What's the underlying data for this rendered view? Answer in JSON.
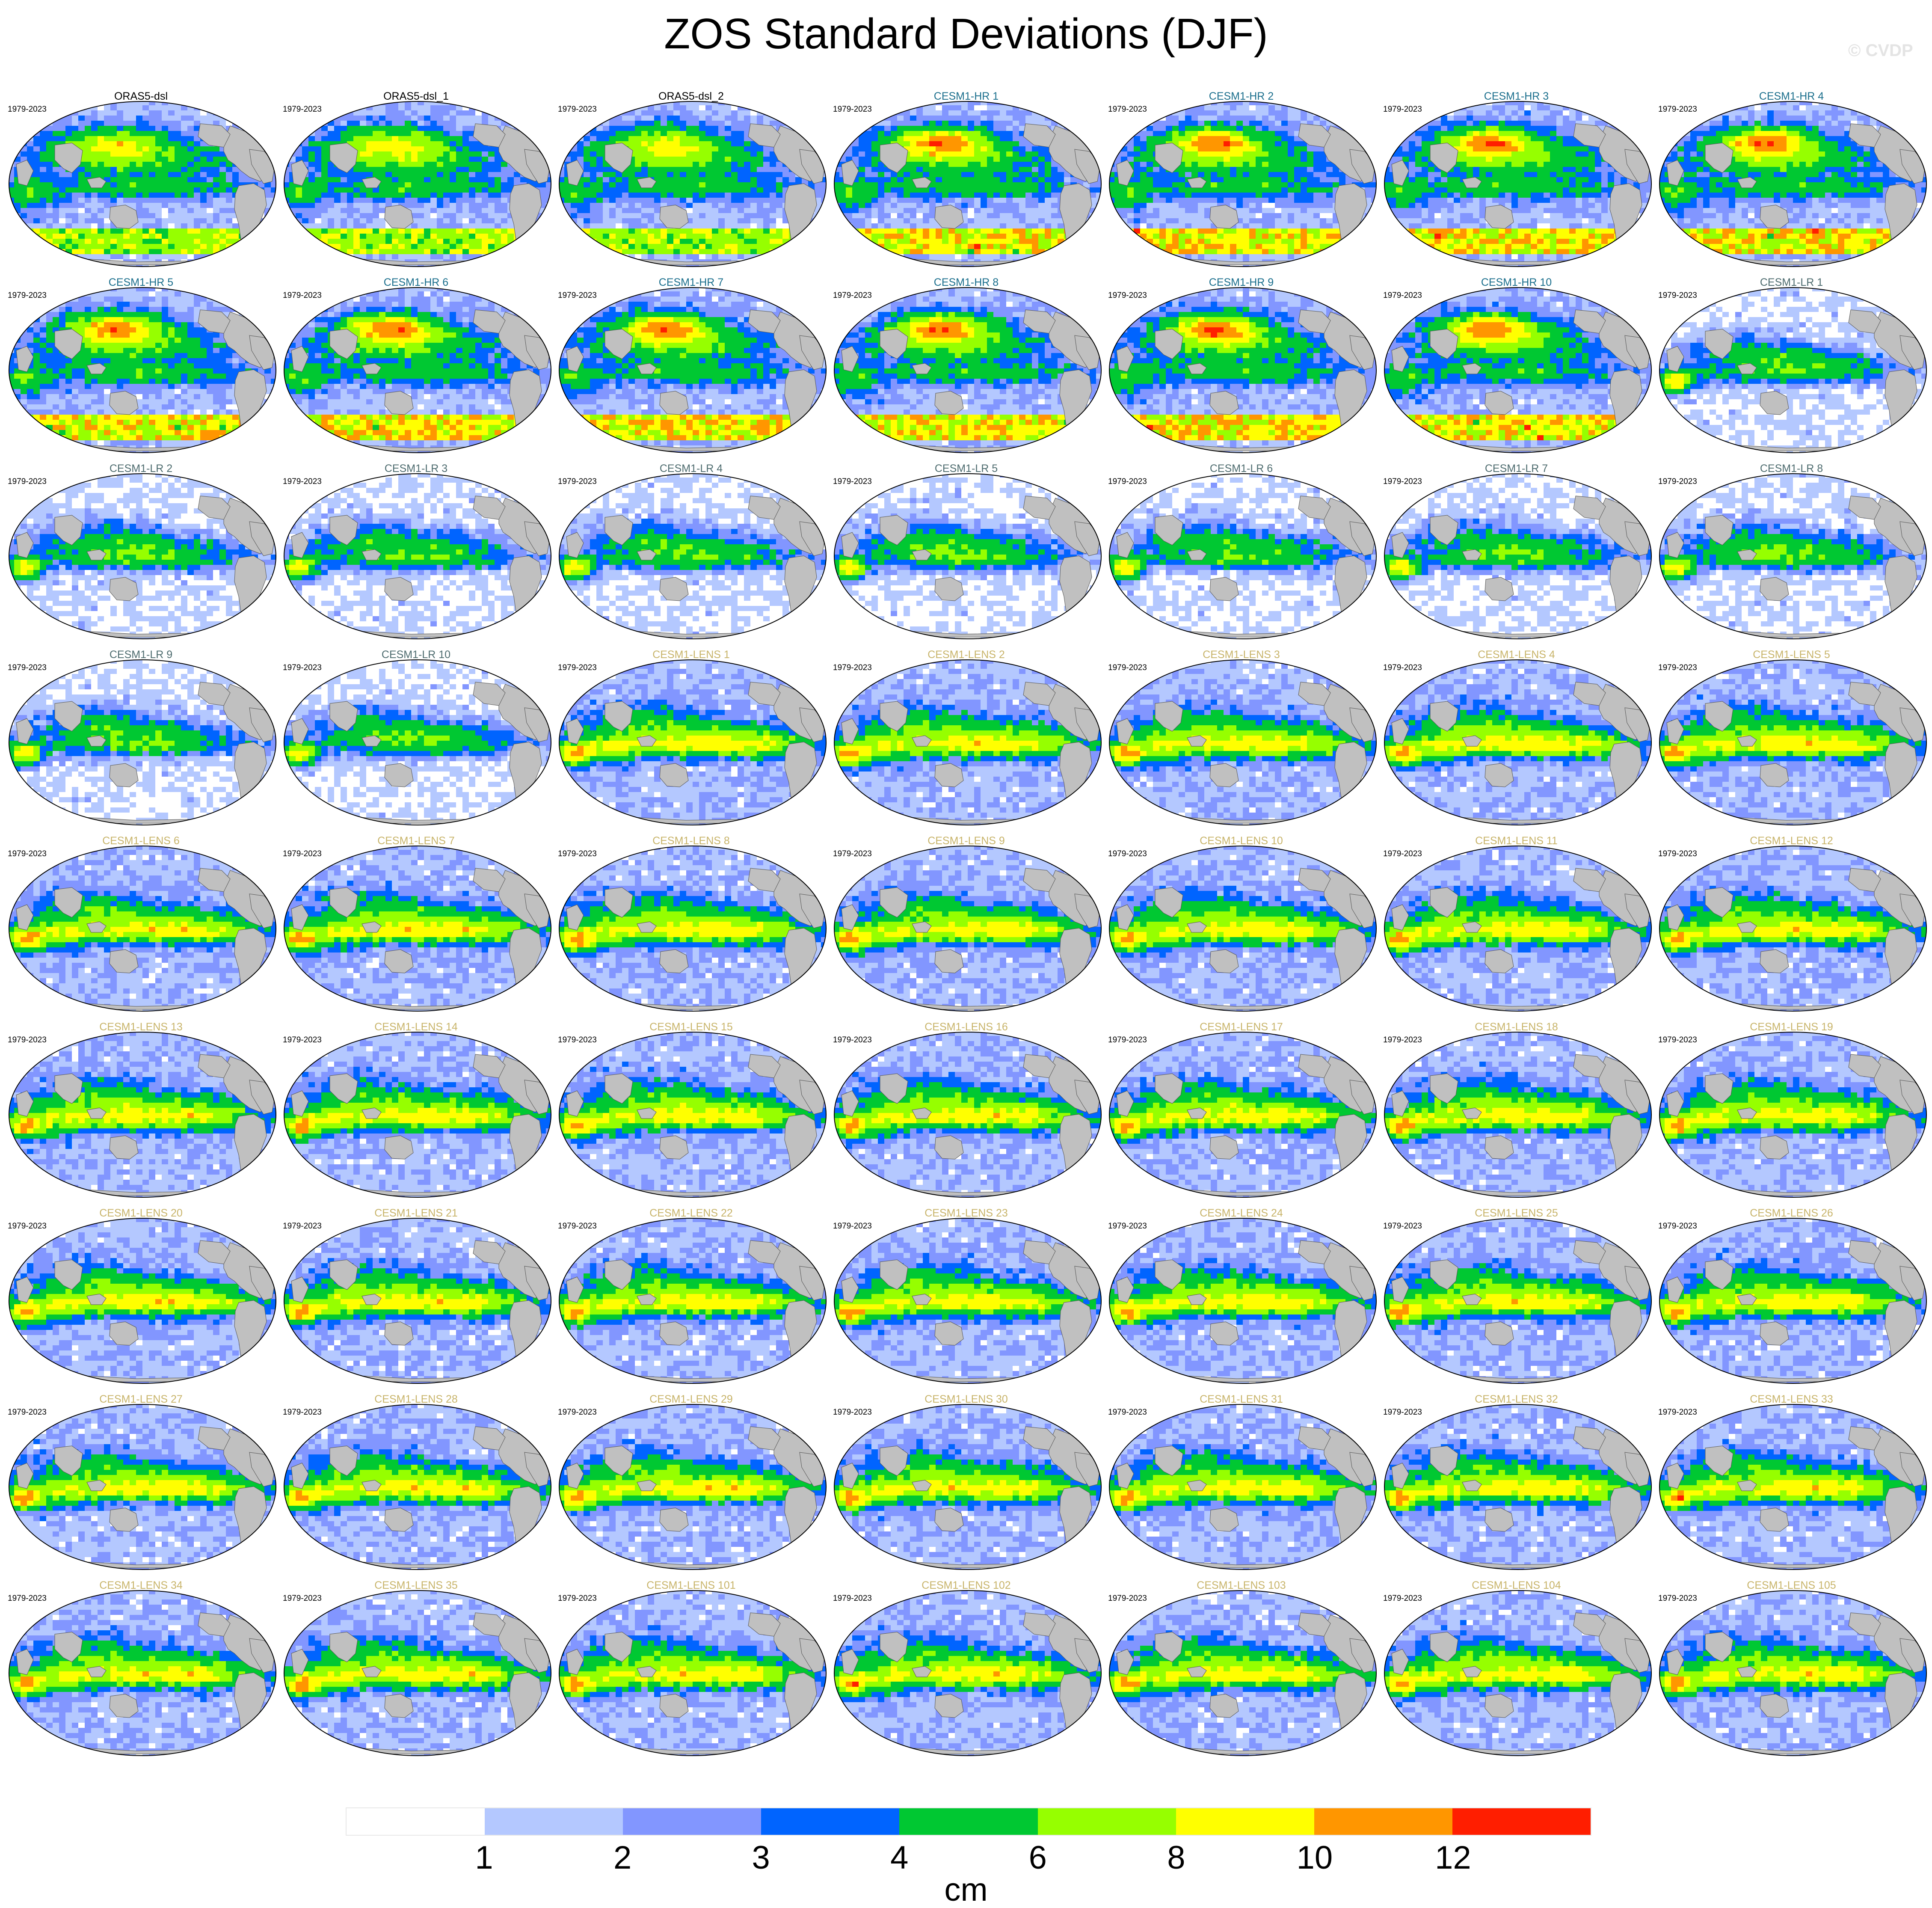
{
  "title": "ZOS Standard Deviations (DJF)",
  "watermark": "© CVDP",
  "period": "1979-2023",
  "panels": [
    {
      "name": "ORAS5-dsl",
      "group": "obs",
      "pattern": "obs"
    },
    {
      "name": "ORAS5-dsl_1",
      "group": "obs",
      "pattern": "obs"
    },
    {
      "name": "ORAS5-dsl_2",
      "group": "obs",
      "pattern": "obs"
    },
    {
      "name": "CESM1-HR 1",
      "group": "hr",
      "pattern": "hr"
    },
    {
      "name": "CESM1-HR 2",
      "group": "hr",
      "pattern": "hr"
    },
    {
      "name": "CESM1-HR 3",
      "group": "hr",
      "pattern": "hr"
    },
    {
      "name": "CESM1-HR 4",
      "group": "hr",
      "pattern": "hr"
    },
    {
      "name": "CESM1-HR 5",
      "group": "hr",
      "pattern": "hr"
    },
    {
      "name": "CESM1-HR 6",
      "group": "hr",
      "pattern": "hr"
    },
    {
      "name": "CESM1-HR 7",
      "group": "hr",
      "pattern": "hr"
    },
    {
      "name": "CESM1-HR 8",
      "group": "hr",
      "pattern": "hr"
    },
    {
      "name": "CESM1-HR 9",
      "group": "hr",
      "pattern": "hr"
    },
    {
      "name": "CESM1-HR 10",
      "group": "hr",
      "pattern": "hr"
    },
    {
      "name": "CESM1-LR 1",
      "group": "lr",
      "pattern": "lr"
    },
    {
      "name": "CESM1-LR 2",
      "group": "lr",
      "pattern": "lr"
    },
    {
      "name": "CESM1-LR 3",
      "group": "lr",
      "pattern": "lr"
    },
    {
      "name": "CESM1-LR 4",
      "group": "lr",
      "pattern": "lr"
    },
    {
      "name": "CESM1-LR 5",
      "group": "lr",
      "pattern": "lr"
    },
    {
      "name": "CESM1-LR 6",
      "group": "lr",
      "pattern": "lr"
    },
    {
      "name": "CESM1-LR 7",
      "group": "lr",
      "pattern": "lr"
    },
    {
      "name": "CESM1-LR 8",
      "group": "lr",
      "pattern": "lr"
    },
    {
      "name": "CESM1-LR 9",
      "group": "lr",
      "pattern": "lr"
    },
    {
      "name": "CESM1-LR 10",
      "group": "lr",
      "pattern": "lr"
    },
    {
      "name": "CESM1-LENS 1",
      "group": "lens",
      "pattern": "lens"
    },
    {
      "name": "CESM1-LENS 2",
      "group": "lens",
      "pattern": "lens"
    },
    {
      "name": "CESM1-LENS 3",
      "group": "lens",
      "pattern": "lens"
    },
    {
      "name": "CESM1-LENS 4",
      "group": "lens",
      "pattern": "lens"
    },
    {
      "name": "CESM1-LENS 5",
      "group": "lens",
      "pattern": "lens"
    },
    {
      "name": "CESM1-LENS 6",
      "group": "lens",
      "pattern": "lens"
    },
    {
      "name": "CESM1-LENS 7",
      "group": "lens",
      "pattern": "lens"
    },
    {
      "name": "CESM1-LENS 8",
      "group": "lens",
      "pattern": "lens"
    },
    {
      "name": "CESM1-LENS 9",
      "group": "lens",
      "pattern": "lens"
    },
    {
      "name": "CESM1-LENS 10",
      "group": "lens",
      "pattern": "lens"
    },
    {
      "name": "CESM1-LENS 11",
      "group": "lens",
      "pattern": "lens"
    },
    {
      "name": "CESM1-LENS 12",
      "group": "lens",
      "pattern": "lens"
    },
    {
      "name": "CESM1-LENS 13",
      "group": "lens",
      "pattern": "lens"
    },
    {
      "name": "CESM1-LENS 14",
      "group": "lens",
      "pattern": "lens"
    },
    {
      "name": "CESM1-LENS 15",
      "group": "lens",
      "pattern": "lens"
    },
    {
      "name": "CESM1-LENS 16",
      "group": "lens",
      "pattern": "lens"
    },
    {
      "name": "CESM1-LENS 17",
      "group": "lens",
      "pattern": "lens"
    },
    {
      "name": "CESM1-LENS 18",
      "group": "lens",
      "pattern": "lens"
    },
    {
      "name": "CESM1-LENS 19",
      "group": "lens",
      "pattern": "lens"
    },
    {
      "name": "CESM1-LENS 20",
      "group": "lens",
      "pattern": "lens"
    },
    {
      "name": "CESM1-LENS 21",
      "group": "lens",
      "pattern": "lens"
    },
    {
      "name": "CESM1-LENS 22",
      "group": "lens",
      "pattern": "lens"
    },
    {
      "name": "CESM1-LENS 23",
      "group": "lens",
      "pattern": "lens"
    },
    {
      "name": "CESM1-LENS 24",
      "group": "lens",
      "pattern": "lens"
    },
    {
      "name": "CESM1-LENS 25",
      "group": "lens",
      "pattern": "lens"
    },
    {
      "name": "CESM1-LENS 26",
      "group": "lens",
      "pattern": "lens"
    },
    {
      "name": "CESM1-LENS 27",
      "group": "lens",
      "pattern": "lens"
    },
    {
      "name": "CESM1-LENS 28",
      "group": "lens",
      "pattern": "lens"
    },
    {
      "name": "CESM1-LENS 29",
      "group": "lens",
      "pattern": "lens"
    },
    {
      "name": "CESM1-LENS 30",
      "group": "lens",
      "pattern": "lens"
    },
    {
      "name": "CESM1-LENS 31",
      "group": "lens",
      "pattern": "lens"
    },
    {
      "name": "CESM1-LENS 32",
      "group": "lens",
      "pattern": "lens"
    },
    {
      "name": "CESM1-LENS 33",
      "group": "lens",
      "pattern": "lens"
    },
    {
      "name": "CESM1-LENS 34",
      "group": "lens",
      "pattern": "lens"
    },
    {
      "name": "CESM1-LENS 35",
      "group": "lens",
      "pattern": "lens"
    },
    {
      "name": "CESM1-LENS 101",
      "group": "lens",
      "pattern": "lens"
    },
    {
      "name": "CESM1-LENS 102",
      "group": "lens",
      "pattern": "lens"
    },
    {
      "name": "CESM1-LENS 103",
      "group": "lens",
      "pattern": "lens"
    },
    {
      "name": "CESM1-LENS 104",
      "group": "lens",
      "pattern": "lens"
    },
    {
      "name": "CESM1-LENS 105",
      "group": "lens",
      "pattern": "lens"
    }
  ],
  "group_colors": {
    "obs": "#000000",
    "hr": "#1a6e8c",
    "lr": "#4d6b6e",
    "lens": "#c8b46a"
  },
  "colorbar": {
    "colors": [
      "#ffffff",
      "#b4c8ff",
      "#8296ff",
      "#0064ff",
      "#00c832",
      "#96ff00",
      "#ffff00",
      "#ff9600",
      "#ff1e00"
    ],
    "tick_labels": [
      "1",
      "2",
      "3",
      "4",
      "6",
      "8",
      "10",
      "12"
    ],
    "units": "cm"
  },
  "land_color": "#c0c0c0",
  "outline_color": "#000000"
}
